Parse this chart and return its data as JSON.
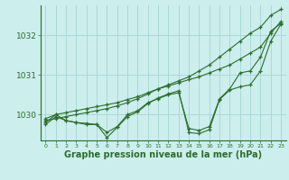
{
  "background_color": "#cceeed",
  "grid_color": "#aad8d8",
  "line_color": "#2d6e2d",
  "xlabel": "Graphe pression niveau de la mer (hPa)",
  "xlabel_fontsize": 7,
  "xlim": [
    -0.5,
    23.5
  ],
  "ylim": [
    1029.35,
    1032.75
  ],
  "yticks": [
    1030,
    1031,
    1032
  ],
  "xticks": [
    0,
    1,
    2,
    3,
    4,
    5,
    6,
    7,
    8,
    9,
    10,
    11,
    12,
    13,
    14,
    15,
    16,
    17,
    18,
    19,
    20,
    21,
    22,
    23
  ],
  "series": [
    {
      "x": [
        0,
        1,
        2,
        3,
        4,
        5,
        6,
        7,
        8,
        9,
        10,
        11,
        12,
        13,
        14,
        15,
        16,
        17,
        18,
        19,
        20,
        21,
        22,
        23
      ],
      "y": [
        1029.9,
        1030.0,
        1030.05,
        1030.1,
        1030.15,
        1030.2,
        1030.25,
        1030.3,
        1030.38,
        1030.45,
        1030.55,
        1030.65,
        1030.72,
        1030.8,
        1030.88,
        1030.95,
        1031.05,
        1031.15,
        1031.25,
        1031.4,
        1031.55,
        1031.7,
        1032.05,
        1032.35
      ]
    },
    {
      "x": [
        0,
        1,
        2,
        3,
        4,
        5,
        6,
        7,
        8,
        9,
        10,
        11,
        12,
        13,
        14,
        15,
        16,
        17,
        18,
        19,
        20,
        21,
        22,
        23
      ],
      "y": [
        1029.85,
        1029.9,
        1029.95,
        1030.0,
        1030.05,
        1030.1,
        1030.15,
        1030.22,
        1030.3,
        1030.4,
        1030.52,
        1030.65,
        1030.75,
        1030.85,
        1030.95,
        1031.1,
        1031.25,
        1031.45,
        1031.65,
        1031.85,
        1032.05,
        1032.2,
        1032.5,
        1032.65
      ]
    },
    {
      "x": [
        0,
        1,
        2,
        3,
        4,
        5,
        6,
        7,
        8,
        9,
        10,
        11,
        12,
        13,
        14,
        15,
        16,
        17,
        18,
        19,
        20,
        21,
        22,
        23
      ],
      "y": [
        1029.8,
        1030.0,
        1029.85,
        1029.8,
        1029.75,
        1029.75,
        1029.55,
        1029.7,
        1030.0,
        1030.1,
        1030.3,
        1030.4,
        1030.5,
        1030.55,
        1029.65,
        1029.6,
        1029.7,
        1030.4,
        1030.65,
        1031.05,
        1031.1,
        1031.45,
        1032.1,
        1032.3
      ]
    },
    {
      "x": [
        0,
        1,
        2,
        3,
        4,
        5,
        6,
        7,
        8,
        9,
        10,
        11,
        12,
        13,
        14,
        15,
        16,
        17,
        18,
        19,
        20,
        21,
        22,
        23
      ],
      "y": [
        1029.75,
        1029.95,
        1029.85,
        1029.8,
        1029.78,
        1029.75,
        1029.42,
        1029.68,
        1029.95,
        1030.07,
        1030.28,
        1030.42,
        1030.52,
        1030.6,
        1029.55,
        1029.52,
        1029.62,
        1030.38,
        1030.62,
        1030.7,
        1030.75,
        1031.1,
        1031.85,
        1032.28
      ]
    }
  ]
}
